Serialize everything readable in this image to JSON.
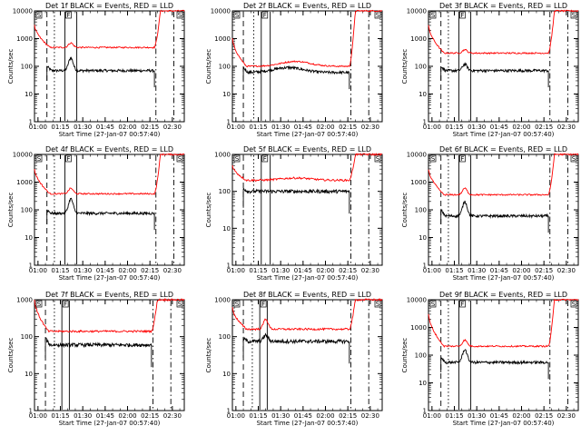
{
  "chart_data": [
    {
      "type": "line",
      "title": "Det 1f BLACK = Events, RED = LLD",
      "xlabel": "Start Time (27-Jan-07 00:57:40)",
      "ylabel": "Counts/sec",
      "yscale": "log",
      "ylim": [
        1,
        10000
      ],
      "xlim": [
        "00:57:40",
        "02:38:00"
      ],
      "x_ticks": [
        "01:00",
        "01:15",
        "01:30",
        "01:45",
        "02:00",
        "02:15",
        "02:30"
      ],
      "y_ticks": [
        "1",
        "10",
        "100",
        "1000",
        "10000"
      ],
      "flags": [
        "S",
        "F",
        "S"
      ],
      "series": [
        {
          "color": "#000000",
          "level": 70,
          "start_level": 100,
          "peak": {
            "time": "01:22",
            "value": 200
          }
        },
        {
          "color": "#ff0000",
          "level": 480,
          "start_level": 3000,
          "end_level": 10000,
          "peak": {
            "time": "01:22",
            "value": 700
          }
        }
      ],
      "markers": {
        "dashed": [
          "01:06"
        ],
        "dotted": [
          "01:11"
        ],
        "solid": [
          "01:18",
          "01:26"
        ],
        "dash_dot": [
          "02:19",
          "02:31"
        ]
      }
    },
    {
      "type": "line",
      "title": "Det 2f BLACK = Events, RED = LLD",
      "xlabel": "Start Time (27-Jan-07 00:57:40)",
      "ylabel": "Counts/sec",
      "yscale": "log",
      "ylim": [
        1,
        10000
      ],
      "xlim": [
        "00:57:40",
        "02:38:00"
      ],
      "x_ticks": [
        "01:00",
        "01:15",
        "01:30",
        "01:45",
        "02:00",
        "02:15",
        "02:30"
      ],
      "y_ticks": [
        "1",
        "10",
        "100",
        "1000",
        "10000"
      ],
      "flags": [
        "S",
        "F",
        "S"
      ],
      "series": [
        {
          "color": "#000000",
          "level": 60,
          "start_level": 90,
          "hump": {
            "time": "01:35",
            "value": 90
          }
        },
        {
          "color": "#ff0000",
          "level": 100,
          "start_level": 1000,
          "end_level": 10000,
          "hump": {
            "time": "01:40",
            "value": 150
          }
        }
      ],
      "markers": {
        "dashed": [
          "01:05"
        ],
        "dotted": [
          "01:12"
        ],
        "solid": [
          "01:17",
          "01:23"
        ],
        "dash_dot": [
          "02:17",
          "02:29"
        ]
      }
    },
    {
      "type": "line",
      "title": "Det 3f BLACK = Events, RED = LLD",
      "xlabel": "Start Time (27-Jan-07 00:57:40)",
      "ylabel": "Counts/sec",
      "yscale": "log",
      "ylim": [
        1,
        10000
      ],
      "xlim": [
        "00:57:40",
        "02:38:00"
      ],
      "x_ticks": [
        "01:00",
        "01:15",
        "01:30",
        "01:45",
        "02:00",
        "02:15",
        "02:30"
      ],
      "y_ticks": [
        "1",
        "10",
        "100",
        "1000",
        "10000"
      ],
      "flags": [
        "S",
        "F",
        "S"
      ],
      "series": [
        {
          "color": "#000000",
          "level": 70,
          "start_level": 100,
          "peak": {
            "time": "01:22",
            "value": 120
          }
        },
        {
          "color": "#ff0000",
          "level": 300,
          "start_level": 3000,
          "end_level": 10000,
          "peak": {
            "time": "01:22",
            "value": 400
          }
        }
      ],
      "markers": {
        "dashed": [
          "01:06"
        ],
        "dotted": [
          "01:11"
        ],
        "solid": [
          "01:18",
          "01:26"
        ],
        "dash_dot": [
          "02:19",
          "02:31"
        ]
      }
    },
    {
      "type": "line",
      "title": "Det 4f BLACK = Events, RED = LLD",
      "xlabel": "Start Time (27-Jan-07 00:57:40)",
      "ylabel": "Counts/sec",
      "yscale": "log",
      "ylim": [
        1,
        10000
      ],
      "xlim": [
        "00:57:40",
        "02:38:00"
      ],
      "x_ticks": [
        "01:00",
        "01:15",
        "01:30",
        "01:45",
        "02:00",
        "02:15",
        "02:30"
      ],
      "y_ticks": [
        "1",
        "10",
        "100",
        "1000",
        "10000"
      ],
      "flags": [
        "S",
        "F",
        "S"
      ],
      "series": [
        {
          "color": "#000000",
          "level": 75,
          "start_level": 100,
          "peak": {
            "time": "01:22",
            "value": 250
          }
        },
        {
          "color": "#ff0000",
          "level": 380,
          "start_level": 3000,
          "end_level": 10000,
          "peak": {
            "time": "01:22",
            "value": 600
          }
        }
      ],
      "markers": {
        "dashed": [
          "01:06"
        ],
        "dotted": [
          "01:11"
        ],
        "solid": [
          "01:18",
          "01:26"
        ],
        "dash_dot": [
          "02:19",
          "02:31"
        ]
      }
    },
    {
      "type": "line",
      "title": "Det 5f BLACK = Events, RED = LLD",
      "xlabel": "Start Time (27-Jan-07 00:57:40)",
      "ylabel": "Counts/sec",
      "yscale": "log",
      "ylim": [
        1,
        1000
      ],
      "xlim": [
        "00:57:40",
        "02:38:00"
      ],
      "x_ticks": [
        "01:00",
        "01:15",
        "01:30",
        "01:45",
        "02:00",
        "02:15",
        "02:30"
      ],
      "y_ticks": [
        "1",
        "10",
        "100",
        "1000"
      ],
      "flags": [
        "S",
        "F",
        "S"
      ],
      "series": [
        {
          "color": "#000000",
          "level": 100,
          "start_level": 120
        },
        {
          "color": "#ff0000",
          "level": 200,
          "start_level": 500,
          "end_level": 1000,
          "hump": {
            "time": "01:40",
            "value": 230
          }
        }
      ],
      "markers": {
        "dashed": [
          "01:05"
        ],
        "dotted": [
          "01:12"
        ],
        "solid": [
          "01:17",
          "01:23"
        ],
        "dash_dot": [
          "02:17",
          "02:29"
        ]
      }
    },
    {
      "type": "line",
      "title": "Det 6f BLACK = Events, RED = LLD",
      "xlabel": "Start Time (27-Jan-07 00:57:40)",
      "ylabel": "Counts/sec",
      "yscale": "log",
      "ylim": [
        1,
        10000
      ],
      "xlim": [
        "00:57:40",
        "02:38:00"
      ],
      "x_ticks": [
        "01:00",
        "01:15",
        "01:30",
        "01:45",
        "02:00",
        "02:15",
        "02:30"
      ],
      "y_ticks": [
        "1",
        "10",
        "100",
        "1000",
        "10000"
      ],
      "flags": [
        "S",
        "F",
        "S"
      ],
      "series": [
        {
          "color": "#000000",
          "level": 60,
          "start_level": 100,
          "peak": {
            "time": "01:22",
            "value": 200
          }
        },
        {
          "color": "#ff0000",
          "level": 350,
          "start_level": 3000,
          "end_level": 10000,
          "peak": {
            "time": "01:22",
            "value": 600
          }
        }
      ],
      "markers": {
        "dashed": [
          "01:06"
        ],
        "dotted": [
          "01:11"
        ],
        "solid": [
          "01:18",
          "01:26"
        ],
        "dash_dot": [
          "02:19",
          "02:31"
        ]
      }
    },
    {
      "type": "line",
      "title": "Det 7f BLACK = Events, RED = LLD",
      "xlabel": "Start Time (27-Jan-07 00:57:40)",
      "ylabel": "Counts/sec",
      "yscale": "log",
      "ylim": [
        1,
        1000
      ],
      "xlim": [
        "00:57:40",
        "02:38:00"
      ],
      "x_ticks": [
        "01:00",
        "01:15",
        "01:30",
        "01:45",
        "02:00",
        "02:15",
        "02:30"
      ],
      "y_ticks": [
        "1",
        "10",
        "100",
        "1000"
      ],
      "flags": [
        "S",
        "F",
        "S"
      ],
      "series": [
        {
          "color": "#000000",
          "level": 60,
          "start_level": 90
        },
        {
          "color": "#ff0000",
          "level": 140,
          "start_level": 1000,
          "end_level": 1000
        }
      ],
      "markers": {
        "dashed": [
          "01:05"
        ],
        "dotted": [
          "01:11"
        ],
        "solid": [
          "01:16",
          "01:21"
        ],
        "dash_dot": [
          "02:17",
          "02:29"
        ]
      }
    },
    {
      "type": "line",
      "title": "Det 8f BLACK = Events, RED = LLD",
      "xlabel": "Start Time (27-Jan-07 00:57:40)",
      "ylabel": "Counts/sec",
      "yscale": "log",
      "ylim": [
        1,
        1000
      ],
      "xlim": [
        "00:57:40",
        "02:38:00"
      ],
      "x_ticks": [
        "01:00",
        "01:15",
        "01:30",
        "01:45",
        "02:00",
        "02:15",
        "02:30"
      ],
      "y_ticks": [
        "1",
        "10",
        "100",
        "1000"
      ],
      "flags": [
        "S",
        "F",
        "S"
      ],
      "series": [
        {
          "color": "#000000",
          "level": 75,
          "start_level": 90,
          "peak": {
            "time": "01:20",
            "value": 110
          }
        },
        {
          "color": "#ff0000",
          "level": 160,
          "start_level": 600,
          "end_level": 1000,
          "peak": {
            "time": "01:20",
            "value": 300
          }
        }
      ],
      "markers": {
        "dashed": [
          "01:05"
        ],
        "dotted": [
          "01:11"
        ],
        "solid": [
          "01:16",
          "01:21"
        ],
        "dash_dot": [
          "02:17",
          "02:29"
        ]
      }
    },
    {
      "type": "line",
      "title": "Det 9f BLACK = Events, RED = LLD",
      "xlabel": "Start Time (27-Jan-07 00:57:40)",
      "ylabel": "Counts/sec",
      "yscale": "log",
      "ylim": [
        1,
        10000
      ],
      "xlim": [
        "00:57:40",
        "02:38:00"
      ],
      "x_ticks": [
        "01:00",
        "01:15",
        "01:30",
        "01:45",
        "02:00",
        "02:15",
        "02:30"
      ],
      "y_ticks": [
        "1",
        "10",
        "100",
        "1000",
        "10000"
      ],
      "flags": [
        "S",
        "F",
        "S"
      ],
      "series": [
        {
          "color": "#000000",
          "level": 55,
          "start_level": 80,
          "peak": {
            "time": "01:22",
            "value": 160
          }
        },
        {
          "color": "#ff0000",
          "level": 210,
          "start_level": 3000,
          "end_level": 10000,
          "peak": {
            "time": "01:22",
            "value": 350
          }
        }
      ],
      "markers": {
        "dashed": [
          "01:06"
        ],
        "dotted": [
          "01:11"
        ],
        "solid": [
          "01:18",
          "01:26"
        ],
        "dash_dot": [
          "02:19",
          "02:31"
        ]
      }
    }
  ]
}
